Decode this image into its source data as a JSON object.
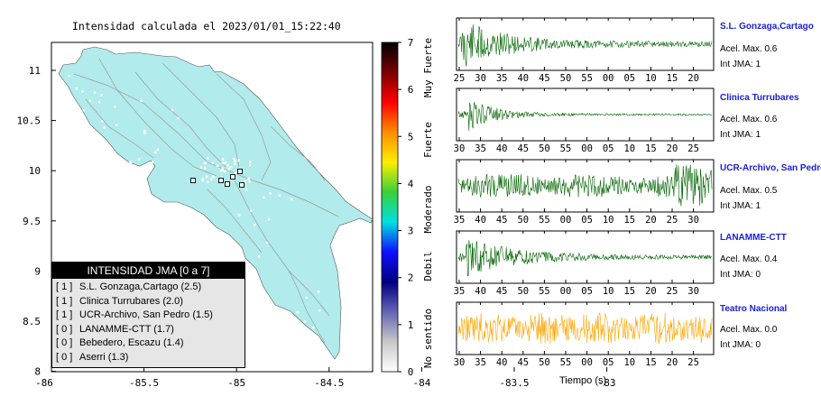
{
  "map": {
    "title": "Intensidad calculada el 2023/01/01_15:22:40",
    "lon_ticks": [
      "-86",
      "-85.5",
      "-85",
      "-84.5",
      "-84",
      "-83.5",
      "-83"
    ],
    "lat_ticks": [
      "11",
      "10.5",
      "10",
      "9.5",
      "9",
      "8.5",
      "8"
    ],
    "land_color": "#b1ebeb"
  },
  "legend": {
    "title": "INTENSIDAD JMA [0 a 7]",
    "entries": [
      {
        "level": "[ 1 ]",
        "text": "S.L. Gonzaga,Cartago (2.5)"
      },
      {
        "level": "[ 1 ]",
        "text": "Clinica Turrubares (2.0)"
      },
      {
        "level": "[ 1 ]",
        "text": "UCR-Archivo, San Pedro (1.5)"
      },
      {
        "level": "[ 0 ]",
        "text": "LANAMME-CTT (1.7)"
      },
      {
        "level": "[ 0 ]",
        "text": "Bebedero, Escazu (1.4)"
      },
      {
        "level": "[ 0 ]",
        "text": "Aserri (1.3)"
      }
    ]
  },
  "colorbar": {
    "ticks": [
      "7",
      "6",
      "5",
      "4",
      "3",
      "2",
      "1",
      "0"
    ],
    "labels": [
      "Muy Fuerte",
      "Fuerte",
      "Moderado",
      "Debil",
      "No sentido"
    ],
    "stops": [
      "#000000",
      "#7a0000",
      "#ff0000",
      "#ff8c00",
      "#ffee00",
      "#3ad03a",
      "#00e0e0",
      "#1010ff",
      "#000080",
      "#6464b4",
      "#c8c8c8",
      "#ffffff"
    ]
  },
  "chart_data": {
    "type": "line",
    "xlabel": "Tiempo (s)",
    "panels": [
      {
        "station": "S.L. Gonzaga,Cartago",
        "accel_label": "Acel. Max. 0.6",
        "jma_label": "Int JMA: 1",
        "color": "#006400",
        "ticks": [
          "25",
          "30",
          "35",
          "40",
          "45",
          "50",
          "55",
          "00",
          "05",
          "10",
          "15",
          "20"
        ]
      },
      {
        "station": "Clinica Turrubares",
        "accel_label": "Acel. Max. 0.6",
        "jma_label": "Int JMA: 1",
        "color": "#006400",
        "ticks": [
          "30",
          "35",
          "40",
          "45",
          "50",
          "55",
          "00",
          "05",
          "10",
          "15",
          "20",
          "25"
        ]
      },
      {
        "station": "UCR-Archivo, San Pedro",
        "accel_label": "Acel. Max. 0.5",
        "jma_label": "Int JMA: 1",
        "color": "#006400",
        "ticks": [
          "35",
          "40",
          "45",
          "50",
          "55",
          "00",
          "05",
          "10",
          "15",
          "20",
          "25",
          "30"
        ]
      },
      {
        "station": "LANAMME-CTT",
        "accel_label": "Acel. Max. 0.4",
        "jma_label": "Int JMA: 0",
        "color": "#006400",
        "ticks": [
          "35",
          "40",
          "45",
          "50",
          "55",
          "00",
          "05",
          "10",
          "15",
          "20",
          "25",
          "30"
        ]
      },
      {
        "station": "Teatro Nacional",
        "accel_label": "Acel. Max. 0.0",
        "jma_label": "Int JMA: 0",
        "color": "#ffa500",
        "ticks": [
          "30",
          "35",
          "40",
          "45",
          "50",
          "55",
          "00",
          "05",
          "10",
          "15",
          "20",
          "25"
        ]
      }
    ]
  }
}
